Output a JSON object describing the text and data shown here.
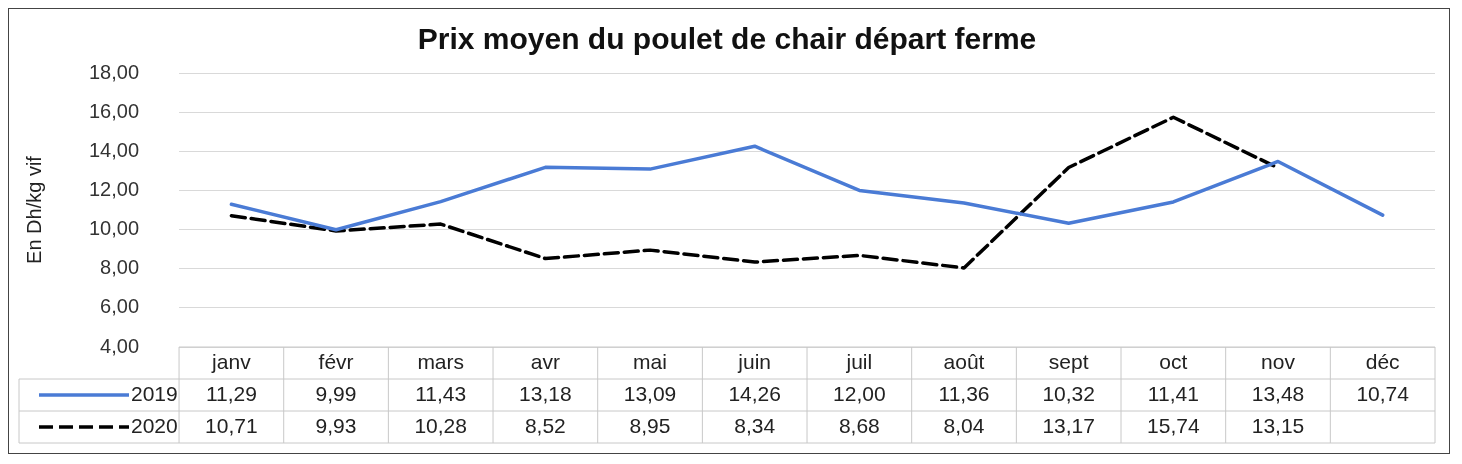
{
  "chart_data": {
    "type": "line",
    "title": "Prix moyen du poulet de chair départ ferme",
    "ylabel": "En Dh/kg vif",
    "categories": [
      "janv",
      "févr",
      "mars",
      "avr",
      "mai",
      "juin",
      "juil",
      "août",
      "sept",
      "oct",
      "nov",
      "déc"
    ],
    "series": [
      {
        "name": "2019",
        "color": "#4a7bd5",
        "line_style": "solid",
        "values": [
          11.29,
          9.99,
          11.43,
          13.18,
          13.09,
          14.26,
          12.0,
          11.36,
          10.32,
          11.41,
          13.48,
          10.74
        ],
        "value_labels": [
          "11,29",
          "9,99",
          "11,43",
          "13,18",
          "13,09",
          "14,26",
          "12,00",
          "11,36",
          "10,32",
          "11,41",
          "13,48",
          "10,74"
        ]
      },
      {
        "name": "2020",
        "color": "#000000",
        "line_style": "dashed",
        "values": [
          10.71,
          9.93,
          10.28,
          8.52,
          8.95,
          8.34,
          8.68,
          8.04,
          13.17,
          15.74,
          13.15,
          null
        ],
        "value_labels": [
          "10,71",
          "9,93",
          "10,28",
          "8,52",
          "8,95",
          "8,34",
          "8,68",
          "8,04",
          "13,17",
          "15,74",
          "13,15",
          null
        ]
      }
    ],
    "ylim": [
      4,
      18
    ],
    "yticks": [
      {
        "value": 4,
        "label": "4,00"
      },
      {
        "value": 6,
        "label": "6,00"
      },
      {
        "value": 8,
        "label": "8,00"
      },
      {
        "value": 10,
        "label": "10,00"
      },
      {
        "value": 12,
        "label": "12,00"
      },
      {
        "value": 14,
        "label": "14,00"
      },
      {
        "value": 16,
        "label": "16,00"
      },
      {
        "value": 18,
        "label": "18,00"
      }
    ],
    "grid": "y",
    "legend": "bottom",
    "marker": "none"
  }
}
